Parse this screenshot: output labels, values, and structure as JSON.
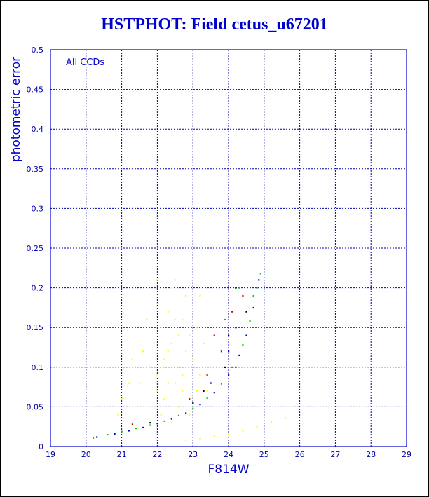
{
  "chart_data": {
    "type": "scatter",
    "title": "HSTPHOT: Field cetus_u67201",
    "xlabel": "F814W",
    "ylabel": "photometric error",
    "annotation": "All CCDs",
    "xlim": [
      19,
      29
    ],
    "ylim": [
      0,
      0.5
    ],
    "xticks": [
      19,
      20,
      21,
      22,
      23,
      24,
      25,
      26,
      27,
      28,
      29
    ],
    "yticks": [
      0,
      0.05,
      0.1,
      0.15,
      0.2,
      0.25,
      0.3,
      0.35,
      0.4,
      0.45,
      0.5
    ],
    "grid": true,
    "colors": {
      "title": "#0000cc",
      "axis": "#0000cc",
      "grid": "#0000aa",
      "tick_label": "#0000aa"
    },
    "series": [
      {
        "color": "#ffff00",
        "points": [
          [
            22.0,
            0.09
          ],
          [
            22.2,
            0.11
          ],
          [
            22.4,
            0.13
          ],
          [
            22.6,
            0.1
          ],
          [
            22.8,
            0.12
          ],
          [
            22.1,
            0.15
          ],
          [
            22.3,
            0.08
          ],
          [
            22.5,
            0.16
          ],
          [
            22.7,
            0.07
          ],
          [
            22.9,
            0.14
          ],
          [
            21.8,
            0.1
          ],
          [
            21.6,
            0.12
          ],
          [
            22.0,
            0.18
          ],
          [
            22.4,
            0.2
          ],
          [
            22.8,
            0.19
          ],
          [
            23.0,
            0.11
          ],
          [
            23.2,
            0.09
          ],
          [
            23.1,
            0.15
          ],
          [
            22.2,
            0.06
          ],
          [
            22.6,
            0.05
          ],
          [
            21.5,
            0.08
          ],
          [
            21.9,
            0.13
          ],
          [
            22.3,
            0.17
          ],
          [
            22.7,
            0.16
          ],
          [
            23.3,
            0.13
          ],
          [
            22.0,
            0.21
          ],
          [
            22.5,
            0.21
          ],
          [
            23.2,
            0.19
          ],
          [
            21.7,
            0.16
          ],
          [
            23.4,
            0.07
          ],
          [
            22.9,
            0.04
          ],
          [
            22.1,
            0.04
          ],
          [
            21.3,
            0.11
          ],
          [
            21.2,
            0.08
          ],
          [
            23.5,
            0.1
          ],
          [
            22.4,
            0.03
          ],
          [
            21.0,
            0.06
          ],
          [
            20.9,
            0.04
          ],
          [
            22.6,
            0.14
          ],
          [
            22.2,
            0.1
          ],
          [
            22.7,
            0.09
          ],
          [
            22.3,
            0.12
          ],
          [
            22.5,
            0.08
          ],
          [
            23.1,
            0.07
          ],
          [
            22.0,
            0.07
          ]
        ]
      },
      {
        "color": "#ffff00",
        "points": [
          [
            22.8,
            0.008
          ],
          [
            23.2,
            0.01
          ],
          [
            23.6,
            0.013
          ],
          [
            24.0,
            0.016
          ],
          [
            24.4,
            0.02
          ],
          [
            24.8,
            0.025
          ],
          [
            25.2,
            0.031
          ],
          [
            25.6,
            0.036
          ]
        ]
      },
      {
        "color": "#00cc00",
        "points": [
          [
            20.2,
            0.011
          ],
          [
            20.6,
            0.015
          ],
          [
            21.0,
            0.019
          ],
          [
            21.4,
            0.023
          ],
          [
            21.8,
            0.027
          ],
          [
            22.2,
            0.032
          ],
          [
            22.6,
            0.039
          ],
          [
            23.0,
            0.048
          ],
          [
            23.4,
            0.061
          ],
          [
            23.8,
            0.079
          ],
          [
            24.1,
            0.1
          ],
          [
            24.4,
            0.128
          ],
          [
            24.6,
            0.158
          ],
          [
            24.8,
            0.2
          ],
          [
            24.9,
            0.218
          ],
          [
            24.3,
            0.2
          ],
          [
            23.9,
            0.16
          ],
          [
            24.7,
            0.19
          ]
        ]
      },
      {
        "color": "#0000dd",
        "points": [
          [
            20.3,
            0.012
          ],
          [
            20.8,
            0.016
          ],
          [
            21.2,
            0.02
          ],
          [
            21.6,
            0.024
          ],
          [
            22.0,
            0.029
          ],
          [
            22.4,
            0.035
          ],
          [
            22.8,
            0.042
          ],
          [
            23.2,
            0.053
          ],
          [
            23.6,
            0.068
          ],
          [
            24.0,
            0.09
          ],
          [
            24.3,
            0.115
          ],
          [
            24.5,
            0.14
          ],
          [
            24.7,
            0.175
          ],
          [
            24.85,
            0.21
          ],
          [
            23.5,
            0.08
          ],
          [
            24.2,
            0.15
          ],
          [
            24.0,
            0.12
          ]
        ]
      },
      {
        "color": "#cc0000",
        "points": [
          [
            23.8,
            0.12
          ],
          [
            24.1,
            0.17
          ],
          [
            23.4,
            0.09
          ],
          [
            24.4,
            0.19
          ],
          [
            22.9,
            0.06
          ],
          [
            23.6,
            0.14
          ],
          [
            21.3,
            0.028
          ],
          [
            24.2,
            0.1
          ]
        ]
      },
      {
        "color": "#000000",
        "points": [
          [
            23.9,
            0.1
          ],
          [
            24.2,
            0.2
          ],
          [
            23.3,
            0.07
          ],
          [
            24.5,
            0.17
          ],
          [
            23.0,
            0.055
          ],
          [
            21.8,
            0.03
          ],
          [
            24.0,
            0.14
          ]
        ]
      }
    ]
  }
}
